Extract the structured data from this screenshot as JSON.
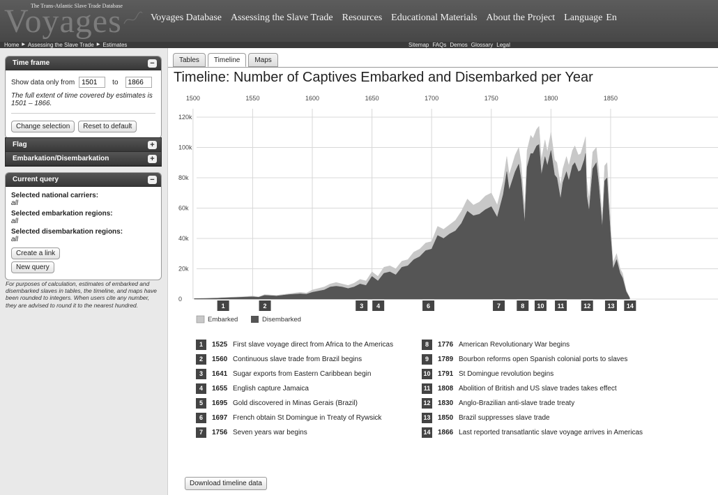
{
  "header": {
    "logo_subtitle": "The Trans-Atlantic Slave Trade Database",
    "logo_text": "Voyages",
    "nav": [
      "Voyages Database",
      "Assessing the Slave Trade",
      "Resources",
      "Educational Materials",
      "About the Project",
      "Language",
      "En"
    ],
    "breadcrumb": [
      "Home",
      "Assessing the Slave Trade",
      "Estimates"
    ],
    "utility_links": [
      "Sitemap",
      "FAQs",
      "Demos",
      "Glossary",
      "Legal"
    ]
  },
  "sidebar": {
    "timeframe": {
      "title": "Time frame",
      "label": "Show data only from",
      "from": "1501",
      "to_label": "to",
      "to": "1866",
      "note": "The full extent of time covered by estimates is 1501 – 1866.",
      "change_button": "Change selection",
      "reset_button": "Reset to default"
    },
    "flag": {
      "title": "Flag"
    },
    "embark": {
      "title": "Embarkation/Disembarkation"
    },
    "query": {
      "title": "Current query",
      "carriers_label": "Selected national carriers:",
      "carriers_value": "all",
      "embark_label": "Selected embarkation regions:",
      "embark_value": "all",
      "disembark_label": "Selected disembarkation regions:",
      "disembark_value": "all",
      "create_link": "Create a link",
      "new_query": "New query"
    },
    "note": "For purposes of calculation, estimates of embarked and disembarked slaves in tables, the timeline, and maps have been rounded to integers. When users cite any number, they are advised to round it to the nearest hundred."
  },
  "tabs": [
    "Tables",
    "Timeline",
    "Maps"
  ],
  "active_tab": "Timeline",
  "page_title": "Timeline: Number of Captives Embarked and Disembarked per Year",
  "download_button": "Download timeline data",
  "colors": {
    "embarked": "#c8c8c8",
    "disembarked": "#555555",
    "marker": "#444444"
  },
  "chart_data": {
    "type": "area",
    "title": "Timeline: Number of Captives Embarked and Disembarked per Year",
    "xlim": [
      1501,
      1866
    ],
    "x_ticks": [
      1500,
      1550,
      1600,
      1650,
      1700,
      1750,
      1800,
      1850
    ],
    "ylim": [
      0,
      120000
    ],
    "y_ticks": [
      0,
      20000,
      40000,
      60000,
      80000,
      100000,
      120000
    ],
    "y_tick_labels": [
      "0",
      "20k",
      "40k",
      "60k",
      "80k",
      "100k",
      "120k"
    ],
    "grid": true,
    "legend": [
      "Embarked",
      "Disembarked"
    ],
    "legend_position": "bottom-left",
    "series": [
      {
        "name": "Embarked",
        "x": [
          1501,
          1510,
          1520,
          1525,
          1530,
          1540,
          1550,
          1555,
          1560,
          1570,
          1580,
          1590,
          1595,
          1600,
          1610,
          1615,
          1620,
          1625,
          1630,
          1635,
          1640,
          1645,
          1650,
          1655,
          1660,
          1665,
          1670,
          1675,
          1680,
          1685,
          1690,
          1695,
          1700,
          1705,
          1710,
          1715,
          1720,
          1725,
          1730,
          1735,
          1740,
          1745,
          1750,
          1755,
          1760,
          1763,
          1765,
          1770,
          1773,
          1775,
          1778,
          1780,
          1783,
          1785,
          1788,
          1790,
          1792,
          1795,
          1797,
          1800,
          1803,
          1805,
          1808,
          1810,
          1813,
          1815,
          1818,
          1820,
          1823,
          1825,
          1828,
          1829,
          1830,
          1832,
          1835,
          1838,
          1840,
          1843,
          1845,
          1847,
          1848,
          1850,
          1852,
          1855,
          1858,
          1860,
          1863,
          1866
        ],
        "values": [
          400,
          500,
          800,
          1000,
          1200,
          1500,
          2000,
          1500,
          3000,
          2500,
          3500,
          4500,
          4000,
          6000,
          8000,
          10000,
          11000,
          10000,
          9000,
          10500,
          13000,
          12000,
          18000,
          15000,
          21000,
          22000,
          20000,
          25000,
          26000,
          31000,
          33000,
          37000,
          38000,
          48000,
          46000,
          49000,
          52000,
          58000,
          66000,
          62000,
          64000,
          68000,
          70000,
          62000,
          78000,
          94000,
          82000,
          95000,
          100000,
          89000,
          60000,
          98000,
          108000,
          106000,
          112000,
          114000,
          92000,
          105000,
          97000,
          110000,
          92000,
          90000,
          75000,
          86000,
          94000,
          88000,
          98000,
          101000,
          95000,
          96000,
          104000,
          107000,
          78000,
          66000,
          97000,
          100000,
          85000,
          54000,
          88000,
          90000,
          76000,
          48000,
          24000,
          30000,
          20000,
          17000,
          6000,
          1000
        ]
      },
      {
        "name": "Disembarked",
        "x": [
          1501,
          1510,
          1520,
          1525,
          1530,
          1540,
          1550,
          1555,
          1560,
          1570,
          1580,
          1590,
          1595,
          1600,
          1610,
          1615,
          1620,
          1625,
          1630,
          1635,
          1640,
          1645,
          1650,
          1655,
          1660,
          1665,
          1670,
          1675,
          1680,
          1685,
          1690,
          1695,
          1700,
          1705,
          1710,
          1715,
          1720,
          1725,
          1730,
          1735,
          1740,
          1745,
          1750,
          1755,
          1760,
          1763,
          1765,
          1770,
          1773,
          1775,
          1778,
          1780,
          1783,
          1785,
          1788,
          1790,
          1792,
          1795,
          1797,
          1800,
          1803,
          1805,
          1808,
          1810,
          1813,
          1815,
          1818,
          1820,
          1823,
          1825,
          1828,
          1829,
          1830,
          1832,
          1835,
          1838,
          1840,
          1843,
          1845,
          1847,
          1848,
          1850,
          1852,
          1855,
          1858,
          1860,
          1863,
          1866
        ],
        "values": [
          300,
          400,
          600,
          800,
          900,
          1200,
          1500,
          1200,
          2500,
          2000,
          3000,
          3500,
          3200,
          4500,
          6000,
          8000,
          8500,
          8000,
          7000,
          8000,
          10000,
          9000,
          15000,
          12000,
          17000,
          18000,
          16000,
          21000,
          22000,
          26000,
          28000,
          32000,
          33000,
          42000,
          40000,
          43000,
          45000,
          50000,
          58000,
          55000,
          56000,
          59000,
          61000,
          54000,
          69000,
          84000,
          72000,
          84000,
          89000,
          79000,
          50000,
          87000,
          96000,
          96000,
          101000,
          102000,
          82000,
          94000,
          88000,
          98000,
          82000,
          80000,
          66000,
          77000,
          84000,
          78000,
          88000,
          90000,
          84000,
          85000,
          92000,
          96000,
          68000,
          58000,
          86000,
          90000,
          76000,
          47000,
          78000,
          80000,
          66000,
          42000,
          20000,
          26000,
          17000,
          14000,
          5000,
          800
        ]
      }
    ],
    "event_markers": [
      {
        "num": "1",
        "year": 1525
      },
      {
        "num": "2",
        "year": 1560
      },
      {
        "num": "3",
        "year": 1641
      },
      {
        "num": "4",
        "year": 1655
      },
      {
        "num": "6",
        "year": 1697
      },
      {
        "num": "7",
        "year": 1756
      },
      {
        "num": "8",
        "year": 1776
      },
      {
        "num": "10",
        "year": 1791
      },
      {
        "num": "11",
        "year": 1808
      },
      {
        "num": "12",
        "year": 1830
      },
      {
        "num": "13",
        "year": 1850
      },
      {
        "num": "14",
        "year": 1866
      }
    ]
  },
  "events": [
    {
      "num": "1",
      "year": "1525",
      "text": "First slave voyage direct from Africa to the Americas"
    },
    {
      "num": "2",
      "year": "1560",
      "text": "Continuous slave trade from Brazil begins"
    },
    {
      "num": "3",
      "year": "1641",
      "text": "Sugar exports from Eastern Caribbean begin"
    },
    {
      "num": "4",
      "year": "1655",
      "text": "English capture Jamaica"
    },
    {
      "num": "5",
      "year": "1695",
      "text": "Gold discovered in Minas Gerais (Brazil)"
    },
    {
      "num": "6",
      "year": "1697",
      "text": "French obtain St Domingue in Treaty of Rywsick"
    },
    {
      "num": "7",
      "year": "1756",
      "text": "Seven years war begins"
    },
    {
      "num": "8",
      "year": "1776",
      "text": "American Revolutionary War begins"
    },
    {
      "num": "9",
      "year": "1789",
      "text": "Bourbon reforms open Spanish colonial ports to slaves"
    },
    {
      "num": "10",
      "year": "1791",
      "text": "St Domingue revolution begins"
    },
    {
      "num": "11",
      "year": "1808",
      "text": "Abolition of British and US slave trades takes effect"
    },
    {
      "num": "12",
      "year": "1830",
      "text": "Anglo-Brazilian anti-slave trade treaty"
    },
    {
      "num": "13",
      "year": "1850",
      "text": "Brazil suppresses slave trade"
    },
    {
      "num": "14",
      "year": "1866",
      "text": "Last reported transatlantic slave voyage arrives in Americas"
    }
  ]
}
